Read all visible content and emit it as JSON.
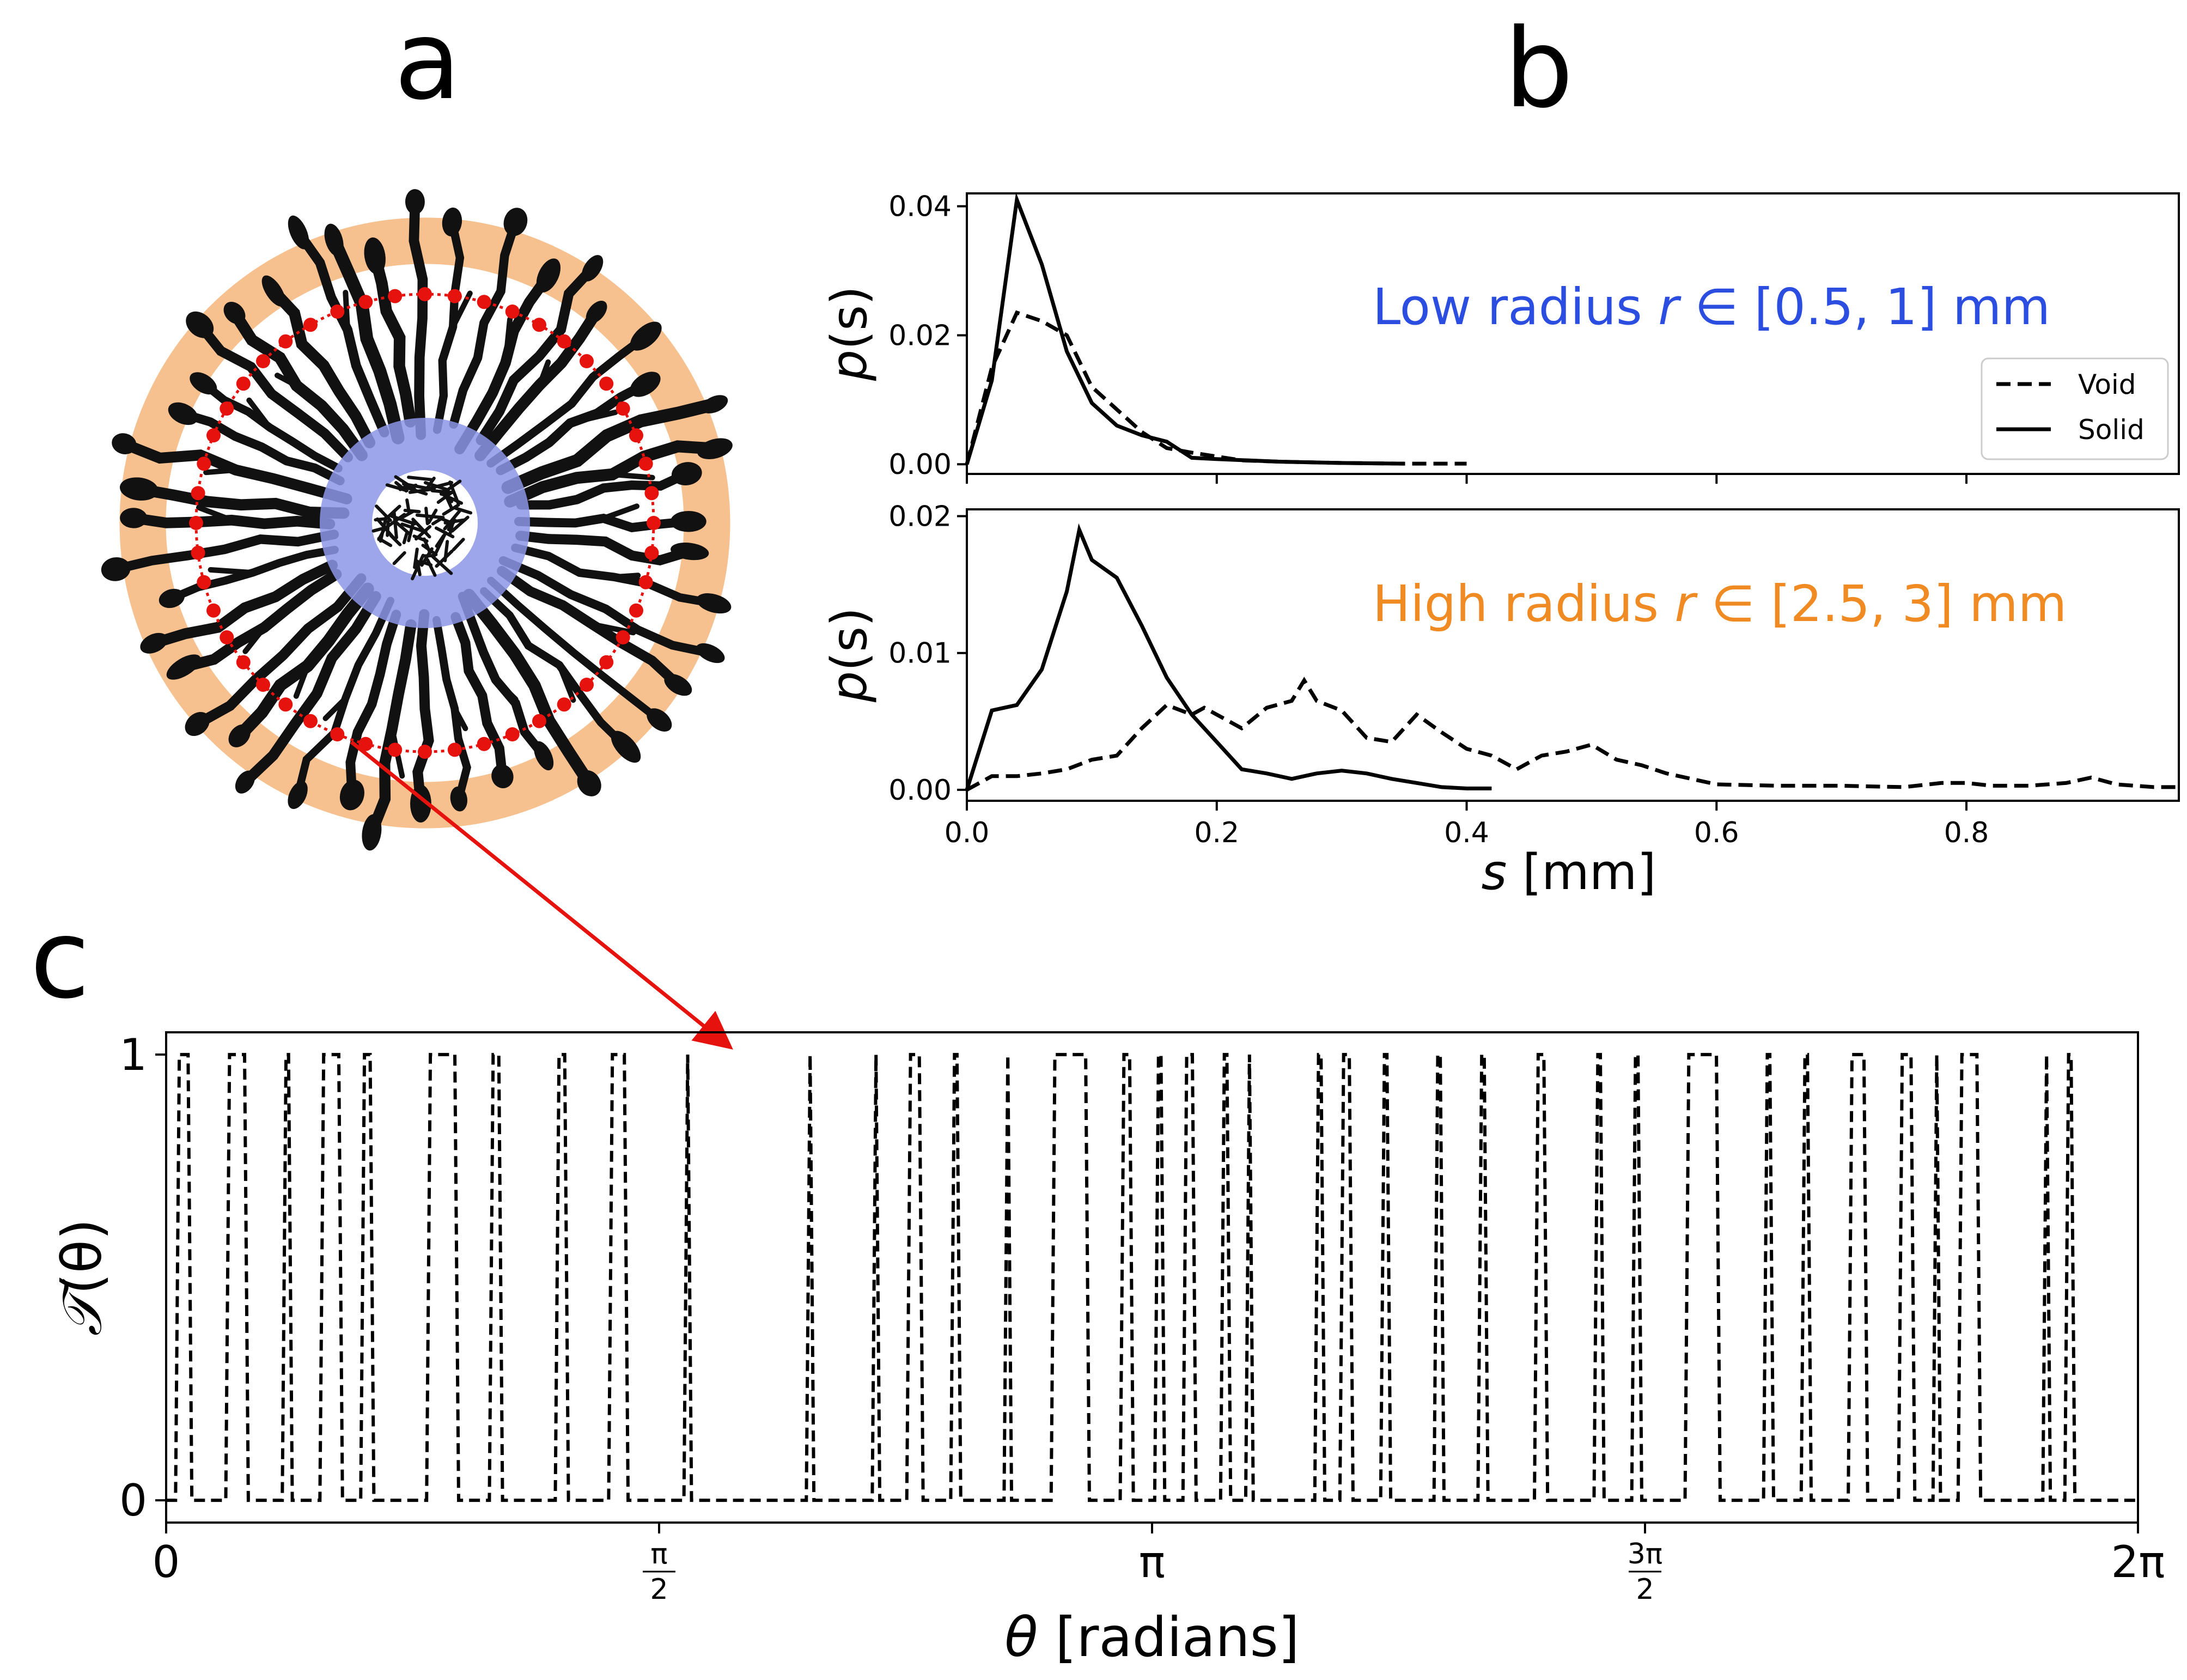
{
  "panel_letters": {
    "a": "a",
    "b": "b",
    "c": "c"
  },
  "panel_a": {
    "description_labels": {
      "outer_ring_color": "#f6c08f",
      "inner_ring_color": "#8c96e6",
      "sample_color": "#e5120e"
    },
    "n_fingers": 44,
    "n_sample_points": 48
  },
  "chart_data": [
    {
      "type": "line",
      "panel": "b-top",
      "annotation": {
        "prefix": "Low radius ",
        "var": "r",
        "mid": " ∈ [0.5, 1] mm",
        "color": "#2b4ee0"
      },
      "ylabel": {
        "main": "p",
        "arg": "(s)"
      },
      "xlim": [
        0,
        0.97
      ],
      "ylim": [
        -0.0015,
        0.042
      ],
      "yticks": [
        0,
        0.02,
        0.04
      ],
      "ytick_labels": [
        "0.00",
        "0.02",
        "0.04"
      ],
      "xticks": [
        0,
        0.2,
        0.4,
        0.6,
        0.8
      ],
      "legend": {
        "position": "lower-right",
        "entries": [
          "Void",
          "Solid"
        ]
      },
      "series": [
        {
          "name": "Void",
          "style": "dashed",
          "x": [
            0.0,
            0.02,
            0.04,
            0.06,
            0.08,
            0.1,
            0.12,
            0.14,
            0.16,
            0.18,
            0.2,
            0.22,
            0.25,
            0.3,
            0.35,
            0.4
          ],
          "y": [
            0.0,
            0.015,
            0.0235,
            0.0222,
            0.02,
            0.012,
            0.0085,
            0.005,
            0.0025,
            0.0018,
            0.0012,
            0.0006,
            0.0004,
            0.0002,
            0.0001,
            0.0001
          ]
        },
        {
          "name": "Solid",
          "style": "solid",
          "x": [
            0.0,
            0.02,
            0.04,
            0.05,
            0.06,
            0.08,
            0.1,
            0.12,
            0.14,
            0.16,
            0.18,
            0.2,
            0.25,
            0.3,
            0.35
          ],
          "y": [
            0.0,
            0.013,
            0.041,
            0.036,
            0.031,
            0.0175,
            0.0095,
            0.006,
            0.0045,
            0.0035,
            0.001,
            0.0008,
            0.0004,
            0.0002,
            0.0001
          ]
        }
      ]
    },
    {
      "type": "line",
      "panel": "b-bottom",
      "annotation": {
        "prefix": "High radius ",
        "var": "r",
        "mid": " ∈ [2.5, 3] mm",
        "color": "#f08a22"
      },
      "ylabel": {
        "main": "p",
        "arg": "(s)"
      },
      "xlabel": {
        "var": "s",
        "unit": " [mm]"
      },
      "xlim": [
        0,
        0.97
      ],
      "ylim": [
        -0.0008,
        0.0205
      ],
      "yticks": [
        0,
        0.01,
        0.02
      ],
      "ytick_labels": [
        "0.00",
        "0.01",
        "0.02"
      ],
      "xticks": [
        0,
        0.2,
        0.4,
        0.6,
        0.8
      ],
      "xtick_labels": [
        "0.0",
        "0.2",
        "0.4",
        "0.6",
        "0.8"
      ],
      "series": [
        {
          "name": "Void",
          "style": "dashed",
          "x": [
            0.0,
            0.02,
            0.04,
            0.06,
            0.08,
            0.1,
            0.12,
            0.14,
            0.16,
            0.18,
            0.19,
            0.2,
            0.22,
            0.24,
            0.26,
            0.27,
            0.28,
            0.3,
            0.32,
            0.34,
            0.36,
            0.38,
            0.4,
            0.42,
            0.44,
            0.46,
            0.48,
            0.5,
            0.52,
            0.54,
            0.56,
            0.58,
            0.6,
            0.65,
            0.7,
            0.75,
            0.78,
            0.8,
            0.82,
            0.85,
            0.88,
            0.9,
            0.92,
            0.95,
            0.97
          ],
          "y": [
            0.0,
            0.001,
            0.001,
            0.0012,
            0.0015,
            0.0022,
            0.0025,
            0.0045,
            0.0062,
            0.0055,
            0.006,
            0.0055,
            0.0045,
            0.006,
            0.0065,
            0.008,
            0.0065,
            0.0058,
            0.0038,
            0.0035,
            0.0055,
            0.0042,
            0.003,
            0.0025,
            0.0015,
            0.0025,
            0.0028,
            0.0033,
            0.0022,
            0.0018,
            0.0012,
            0.0008,
            0.0004,
            0.0003,
            0.0003,
            0.0002,
            0.0005,
            0.0005,
            0.0003,
            0.0003,
            0.0005,
            0.0009,
            0.0004,
            0.0002,
            0.0002
          ]
        },
        {
          "name": "Solid",
          "style": "solid",
          "x": [
            0.0,
            0.02,
            0.03,
            0.04,
            0.06,
            0.08,
            0.09,
            0.1,
            0.12,
            0.14,
            0.16,
            0.18,
            0.2,
            0.22,
            0.24,
            0.26,
            0.28,
            0.3,
            0.32,
            0.34,
            0.36,
            0.38,
            0.4,
            0.42
          ],
          "y": [
            0.0,
            0.0058,
            0.006,
            0.0062,
            0.0088,
            0.0145,
            0.019,
            0.0168,
            0.0155,
            0.012,
            0.0082,
            0.0055,
            0.0035,
            0.0015,
            0.0012,
            0.0008,
            0.0012,
            0.0014,
            0.0012,
            0.0008,
            0.0005,
            0.0002,
            0.0001,
            0.0001
          ]
        }
      ]
    },
    {
      "type": "line",
      "panel": "c",
      "style": "dashed-step",
      "xlim": [
        0,
        6.283185
      ],
      "ylim": [
        -0.05,
        1.05
      ],
      "yticks": [
        0,
        1
      ],
      "ytick_labels": [
        "0",
        "1"
      ],
      "xticks": [
        0,
        1.570796,
        3.141593,
        4.712389,
        6.283185
      ],
      "xtick_labels": [
        {
          "type": "plain",
          "text": "0"
        },
        {
          "type": "frac",
          "num": "π",
          "den": "2"
        },
        {
          "type": "plain",
          "text": "π"
        },
        {
          "type": "frac",
          "num": "3π",
          "den": "2"
        },
        {
          "type": "plain",
          "text": "2π"
        }
      ],
      "ylabel": {
        "main": "𝒯",
        "arg": "(θ)"
      },
      "xlabel": {
        "var": "θ",
        "unit": " [radians]"
      },
      "pulses": [
        [
          0.03,
          0.07
        ],
        [
          0.19,
          0.25
        ],
        [
          0.37,
          0.39
        ],
        [
          0.49,
          0.55
        ],
        [
          0.62,
          0.65
        ],
        [
          0.83,
          0.92
        ],
        [
          1.03,
          1.06
        ],
        [
          1.24,
          1.27
        ],
        [
          1.41,
          1.46
        ],
        [
          1.65,
          1.66
        ],
        [
          2.04,
          2.05
        ],
        [
          2.25,
          2.26
        ],
        [
          2.36,
          2.4
        ],
        [
          2.5,
          2.52
        ],
        [
          2.67,
          2.68
        ],
        [
          2.82,
          2.93
        ],
        [
          3.04,
          3.07
        ],
        [
          3.15,
          3.17
        ],
        [
          3.24,
          3.27
        ],
        [
          3.36,
          3.38
        ],
        [
          3.44,
          3.45
        ],
        [
          3.66,
          3.68
        ],
        [
          3.74,
          3.77
        ],
        [
          3.87,
          3.89
        ],
        [
          4.04,
          4.06
        ],
        [
          4.18,
          4.2
        ],
        [
          4.36,
          4.39
        ],
        [
          4.55,
          4.57
        ],
        [
          4.67,
          4.69
        ],
        [
          4.84,
          4.94
        ],
        [
          5.09,
          5.11
        ],
        [
          5.21,
          5.23
        ],
        [
          5.36,
          5.41
        ],
        [
          5.52,
          5.56
        ],
        [
          5.63,
          5.64
        ],
        [
          5.71,
          5.77
        ],
        [
          5.98,
          5.99
        ],
        [
          6.05,
          6.07
        ]
      ]
    }
  ]
}
